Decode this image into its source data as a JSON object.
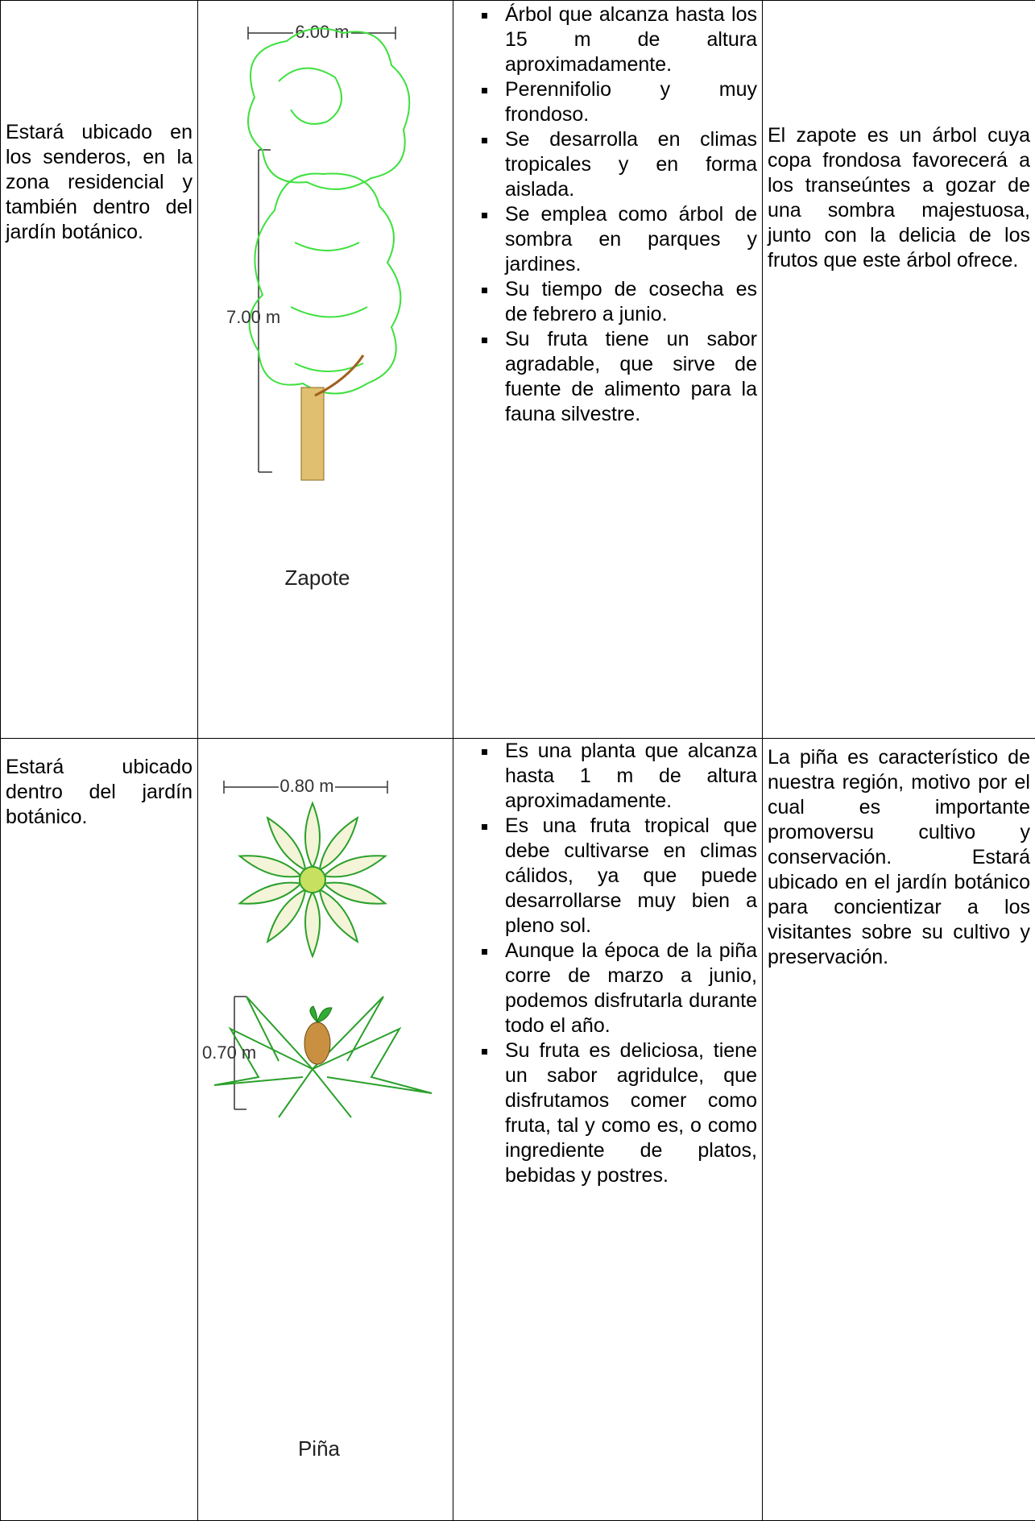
{
  "table": {
    "rows": [
      {
        "location": "Estará ubicado en los senderos, en la zona residencial y también dentro del jardín botánico.",
        "image": {
          "plan_dimension": "6.00 m",
          "elevation_dimension": "7.00 m",
          "name": "Zapote"
        },
        "features": [
          "Árbol que alcanza hasta los 15 m de altura aproximadamente.",
          "Perennifolio y muy frondoso.",
          "Se desarrolla en climas tropicales y en forma aislada.",
          "Se emplea como árbol de sombra en parques y jardines.",
          "Su tiempo de cosecha es de febrero a junio.",
          "Su fruta tiene un sabor agradable, que sirve de fuente de alimento para la fauna silvestre."
        ],
        "description": "El zapote es un árbol cuya copa frondosa favorecerá a los transeúntes a gozar de una sombra majestuosa, junto con la delicia de los frutos que este árbol ofrece."
      },
      {
        "location": "Estará ubicado dentro del jardín botánico.",
        "image": {
          "plan_dimension": "0.80 m",
          "elevation_dimension": "0.70 m",
          "name": "Piña"
        },
        "features": [
          "Es una planta que alcanza hasta 1 m de altura aproximadamente.",
          "Es una fruta tropical que debe cultivarse en climas cálidos, ya que puede desarrollarse muy bien a pleno sol.",
          "Aunque la época de la piña corre de marzo a junio, podemos disfrutarla durante todo el año.",
          "Su fruta es deliciosa, tiene un sabor agridulce, que disfrutamos comer como fruta, tal y como es, o como ingrediente de platos, bebidas y postres."
        ],
        "description": "La piña es característico de nuestra región, motivo por el cual es importante promoversu cultivo y conservación. Estará ubicado en el jardín botánico para concientizar a los visitantes sobre su cultivo y preservación."
      }
    ]
  }
}
